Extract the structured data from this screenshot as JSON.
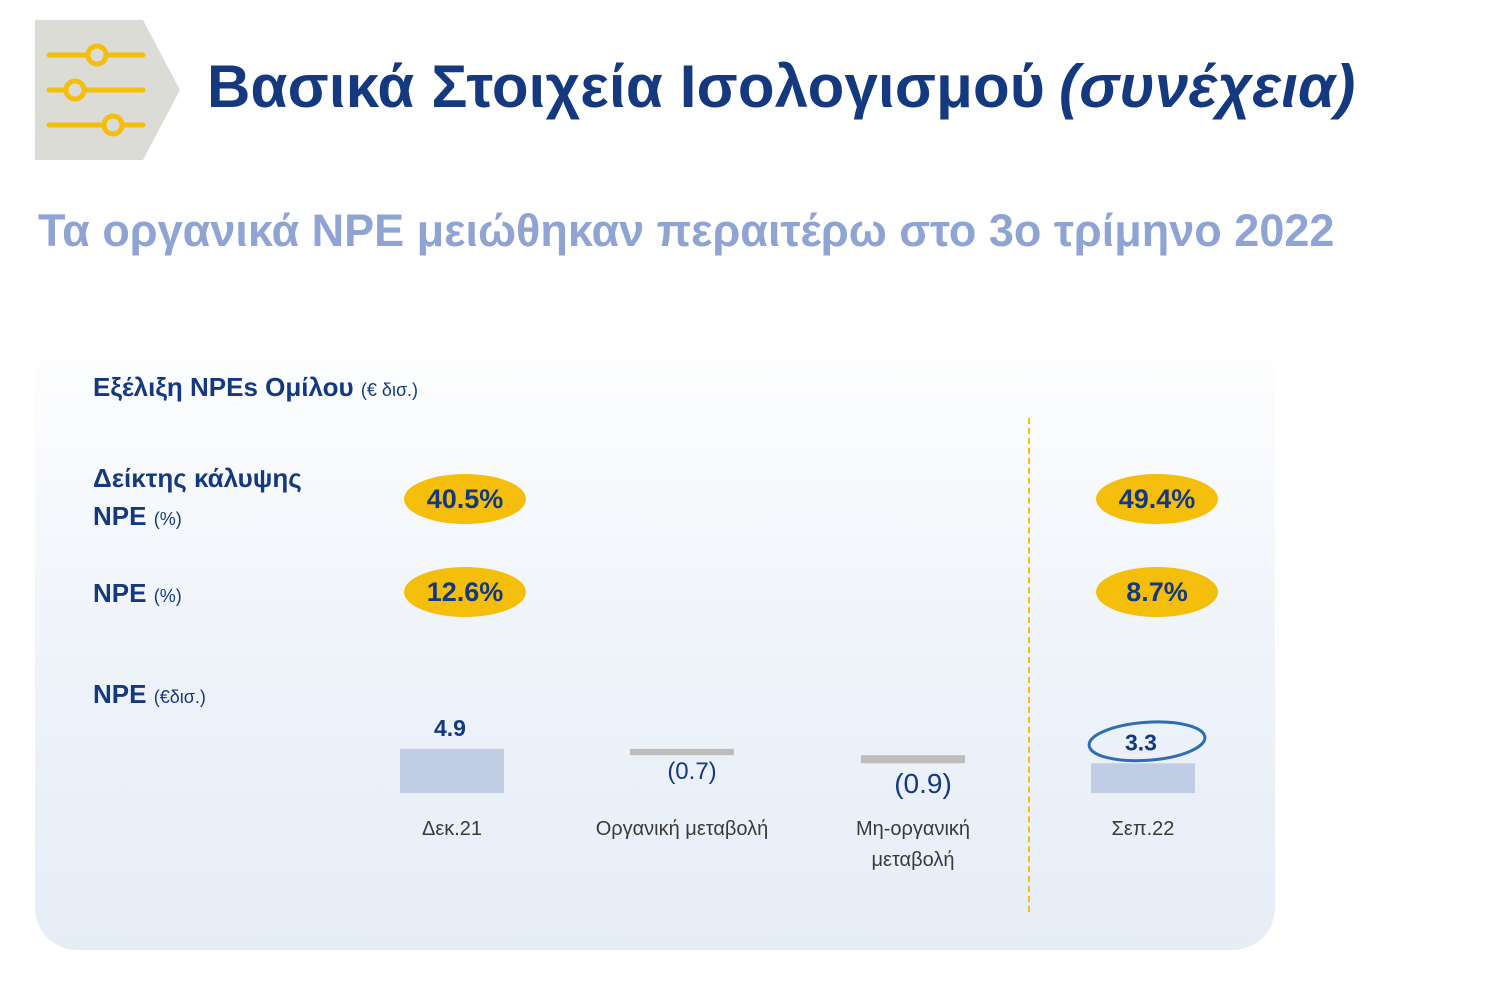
{
  "header": {
    "title": "Βασικά Στοιχεία Ισολογισμού",
    "title_tail": "(συνέχεια)",
    "subtitle": "Τα οργανικά NPE μειώθηκαν περαιτέρω στο 3ο τρίμηνο 2022",
    "logo_icon": "sliders-icon",
    "colors": {
      "title": "#14397f",
      "subtitle": "#8fa4d3",
      "accent": "#f5be0b",
      "logo_tile": "#dcdcd6"
    }
  },
  "panel": {
    "title": "Εξέλιξη NPEs Ομίλου",
    "title_unit": "(€ δισ.)",
    "rows": {
      "coverage": {
        "label_line1": "Δείκτης κάλυψης",
        "label_line2": "NPE",
        "unit": "(%)"
      },
      "npe_ratio": {
        "label": "NPE",
        "unit": "(%)"
      },
      "npe_amount": {
        "label": "NPE",
        "unit": "(€δισ.)"
      }
    },
    "pills": {
      "coverage_dec21": "40.5%",
      "coverage_sep22": "49.4%",
      "npe_ratio_dec21": "12.6%",
      "npe_ratio_sep22": "8.7%"
    }
  },
  "chart_data": {
    "type": "bar",
    "subtype": "waterfall",
    "categories": [
      "Δεκ.21",
      "Οργανική μεταβολή",
      "Μη-οργανική μεταβολή",
      "Σεπ.22"
    ],
    "values": [
      4.9,
      -0.7,
      -0.9,
      3.3
    ],
    "value_labels": [
      "4.9",
      "(0.7)",
      "(0.9)",
      "3.3"
    ],
    "bar_kinds": [
      "total",
      "delta",
      "delta",
      "total"
    ],
    "highlighted": "3.3",
    "grid": false,
    "legend": "none",
    "colors": {
      "total": "#c1cde4",
      "delta": "#bdbdbd",
      "label": "#14397f",
      "axis_text": "#3a3a3a",
      "highlight": "#2e6db4"
    }
  }
}
